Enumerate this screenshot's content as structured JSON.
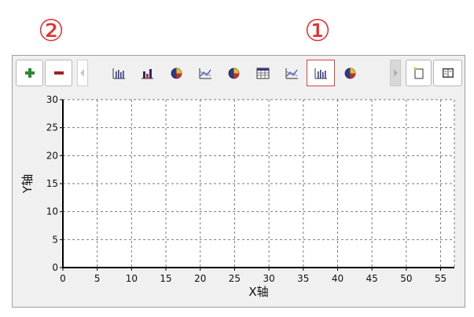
{
  "callouts": {
    "one": "①",
    "two": "②"
  },
  "toolbar": {
    "add_icon": "plus-icon",
    "remove_icon": "minus-icon",
    "chart_buttons": [
      {
        "icon": "bar-chart-icon"
      },
      {
        "icon": "colored-bar-chart-icon"
      },
      {
        "icon": "pie-chart-icon"
      },
      {
        "icon": "line-chart-icon"
      },
      {
        "icon": "pie-chart-icon"
      },
      {
        "icon": "table-icon"
      },
      {
        "icon": "line-chart-icon"
      },
      {
        "icon": "bar-chart-icon",
        "selected": true
      },
      {
        "icon": "pie-chart-icon"
      }
    ],
    "new_icon": "new-document-icon",
    "book_icon": "book-icon"
  },
  "colors": {
    "accent": "#e03030",
    "add": "#2a8a2a",
    "remove": "#a02020"
  },
  "chart_data": {
    "type": "line",
    "series": [],
    "xlabel": "X轴",
    "ylabel": "Y轴",
    "xlim": [
      0,
      57
    ],
    "ylim": [
      0,
      30
    ],
    "x_ticks": [
      "0",
      "5",
      "10",
      "15",
      "20",
      "25",
      "30",
      "35",
      "40",
      "45",
      "50",
      "55"
    ],
    "y_ticks": [
      "0",
      "5",
      "10",
      "15",
      "20",
      "25",
      "30"
    ],
    "grid": true,
    "grid_style": "dashed"
  }
}
